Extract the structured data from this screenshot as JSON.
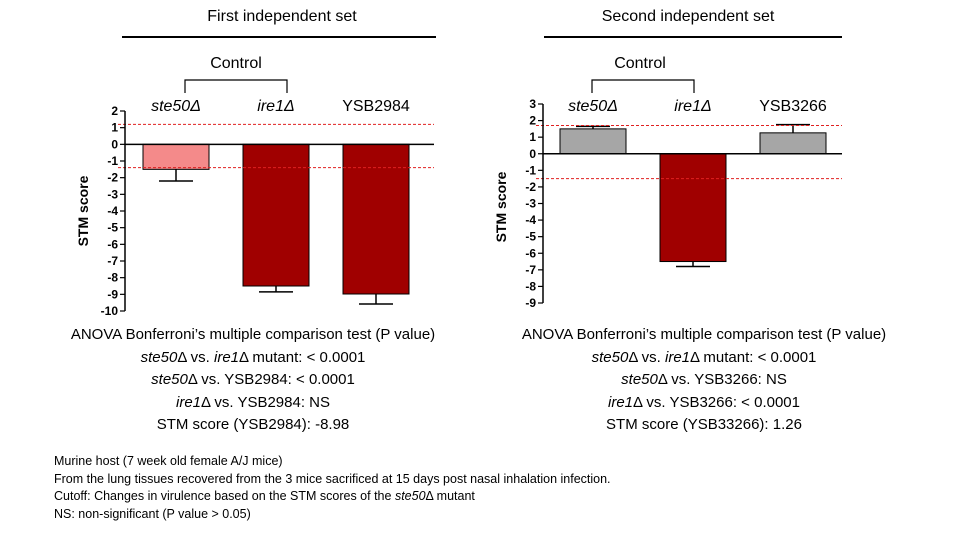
{
  "colors": {
    "bar_light": "#f48a8a",
    "bar_dark": "#a00000",
    "bar_gray": "#a6a6a6",
    "cutoff_line": "#e02020",
    "axis": "#000000"
  },
  "chart_data": [
    {
      "type": "bar",
      "title": "First independent set",
      "ylabel": "STM score",
      "group_label": "Control",
      "categories": [
        {
          "label": "ste50Δ",
          "prefix": "",
          "italic": "ste50",
          "suffix": "Δ"
        },
        {
          "label": "ire1Δ",
          "prefix": "",
          "italic": "ire1",
          "suffix": "Δ"
        },
        {
          "label": "YSB2984",
          "prefix": "YSB2984",
          "italic": "",
          "suffix": ""
        }
      ],
      "values": [
        -1.5,
        -8.5,
        -8.98
      ],
      "errors": [
        0.7,
        0.35,
        0.6
      ],
      "bar_colors": [
        "#f48a8a",
        "#a00000",
        "#a00000"
      ],
      "cutoffs": [
        1.2,
        -1.4
      ],
      "ylim": [
        -10,
        2
      ],
      "yticks": [
        2,
        1,
        0,
        -1,
        -2,
        -3,
        -4,
        -5,
        -6,
        -7,
        -8,
        -9,
        -10
      ],
      "grid": false
    },
    {
      "type": "bar",
      "title": "Second independent set",
      "ylabel": "STM score",
      "group_label": "Control",
      "categories": [
        {
          "label": "ste50Δ",
          "prefix": "",
          "italic": "ste50",
          "suffix": "Δ"
        },
        {
          "label": "ire1Δ",
          "prefix": "",
          "italic": "ire1",
          "suffix": "Δ"
        },
        {
          "label": "YSB3266",
          "prefix": "YSB3266",
          "italic": "",
          "suffix": ""
        }
      ],
      "values": [
        1.5,
        -6.5,
        1.26
      ],
      "errors": [
        0.15,
        0.3,
        0.5
      ],
      "bar_colors": [
        "#a6a6a6",
        "#a00000",
        "#a6a6a6"
      ],
      "cutoffs": [
        1.7,
        -1.5
      ],
      "ylim": [
        -9,
        3
      ],
      "yticks": [
        3,
        2,
        1,
        0,
        -1,
        -2,
        -3,
        -4,
        -5,
        -6,
        -7,
        -8,
        -9
      ],
      "grid": false
    }
  ],
  "stats": [
    {
      "heading": "ANOVA Bonferroni’s multiple comparison test (P value)",
      "line1": {
        "i1": "ste50",
        "t1": "Δ vs. ",
        "i2": "ire1",
        "t2": "Δ mutant: < 0.0001"
      },
      "line2": {
        "i1": "ste50",
        "t1": "Δ vs. YSB2984: < 0.0001"
      },
      "line3": {
        "i1": "ire1",
        "t1": "Δ vs. YSB2984: NS"
      },
      "line4": "STM score (YSB2984): -8.98"
    },
    {
      "heading": "ANOVA Bonferroni’s multiple comparison test (P value)",
      "line1": {
        "i1": "ste50",
        "t1": "Δ vs. ",
        "i2": "ire1",
        "t2": "Δ mutant: < 0.0001"
      },
      "line2": {
        "i1": "ste50",
        "t1": "Δ vs. YSB3266: NS"
      },
      "line3": {
        "i1": "ire1",
        "t1": "Δ vs. YSB3266: < 0.0001"
      },
      "line4": "STM score (YSB33266): 1.26"
    }
  ],
  "footnotes": {
    "line1": "Murine host (7 week old female A/J mice)",
    "line2": "From  the lung tissues recovered from the 3 mice sacrificed at 15 days post nasal inhalation infection.",
    "line3_pre": "Cutoff: Changes in virulence based on the STM scores of the ",
    "line3_italic": "ste50",
    "line3_post": "Δ mutant",
    "line4": "NS: non-significant (P value > 0.05)"
  }
}
